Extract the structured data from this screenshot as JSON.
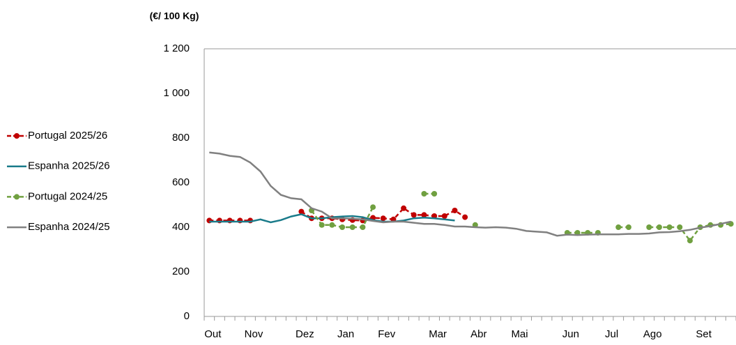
{
  "chart_data": {
    "type": "line",
    "y_axis_label": "(€/ 100 Kg)",
    "categories": [
      "Out",
      null,
      null,
      null,
      "Nov",
      null,
      null,
      null,
      null,
      "Dez",
      null,
      null,
      null,
      "Jan",
      null,
      null,
      null,
      "Fev",
      null,
      null,
      null,
      null,
      "Mar",
      null,
      null,
      null,
      "Abr",
      null,
      null,
      null,
      "Mai",
      null,
      null,
      null,
      null,
      "Jun",
      null,
      null,
      null,
      "Jul",
      null,
      null,
      null,
      "Ago",
      null,
      null,
      null,
      null,
      "Set",
      null,
      null,
      null
    ],
    "ylim": [
      0,
      1200
    ],
    "yticks": [
      0,
      200,
      400,
      600,
      800,
      {
        "value": 1000,
        "label": "1 000"
      },
      {
        "value": 1200,
        "label": "1 200"
      }
    ],
    "grid": false,
    "legend": "left",
    "series": [
      {
        "name": "Portugal 2025/26",
        "color": "#c00000",
        "dashed": true,
        "markers": true,
        "values": [
          430,
          430,
          430,
          430,
          430,
          null,
          null,
          null,
          null,
          470,
          440,
          440,
          440,
          435,
          432,
          430,
          442,
          440,
          435,
          485,
          455,
          455,
          450,
          450,
          475,
          445,
          null,
          null,
          null,
          null,
          null,
          null,
          null,
          null,
          null,
          null,
          null,
          null,
          null,
          null,
          null,
          null,
          null,
          null,
          null,
          null,
          null,
          null,
          null,
          null,
          null,
          null
        ]
      },
      {
        "name": "Espanha 2025/26",
        "color": "#1a7b8a",
        "dashed": false,
        "markers": false,
        "values": [
          425,
          425,
          425,
          425,
          425,
          435,
          422,
          432,
          448,
          458,
          440,
          440,
          445,
          448,
          450,
          445,
          432,
          425,
          425,
          430,
          440,
          443,
          440,
          435,
          430,
          null,
          null,
          null,
          null,
          null,
          null,
          null,
          null,
          null,
          null,
          null,
          null,
          null,
          null,
          null,
          null,
          null,
          null,
          null,
          null,
          null,
          null,
          null,
          null,
          null,
          null,
          null
        ]
      },
      {
        "name": "Portugal 2024/25",
        "color": "#70a040",
        "dashed": true,
        "markers": true,
        "values": [
          null,
          null,
          null,
          null,
          null,
          null,
          null,
          null,
          null,
          null,
          475,
          410,
          410,
          400,
          400,
          400,
          490,
          null,
          null,
          null,
          null,
          550,
          550,
          null,
          null,
          null,
          410,
          null,
          null,
          null,
          null,
          null,
          null,
          null,
          null,
          375,
          375,
          375,
          375,
          null,
          400,
          400,
          null,
          400,
          400,
          400,
          400,
          340,
          400,
          410,
          410,
          415
        ]
      },
      {
        "name": "Espanha 2024/25",
        "color": "#808080",
        "dashed": false,
        "markers": false,
        "values": [
          735,
          730,
          720,
          715,
          690,
          650,
          585,
          545,
          530,
          525,
          485,
          470,
          440,
          440,
          438,
          435,
          428,
          422,
          425,
          425,
          420,
          415,
          415,
          410,
          403,
          403,
          400,
          398,
          400,
          398,
          393,
          383,
          380,
          377,
          362,
          367,
          365,
          367,
          368,
          368,
          368,
          370,
          370,
          372,
          377,
          378,
          382,
          388,
          398,
          405,
          415,
          425
        ]
      }
    ]
  }
}
